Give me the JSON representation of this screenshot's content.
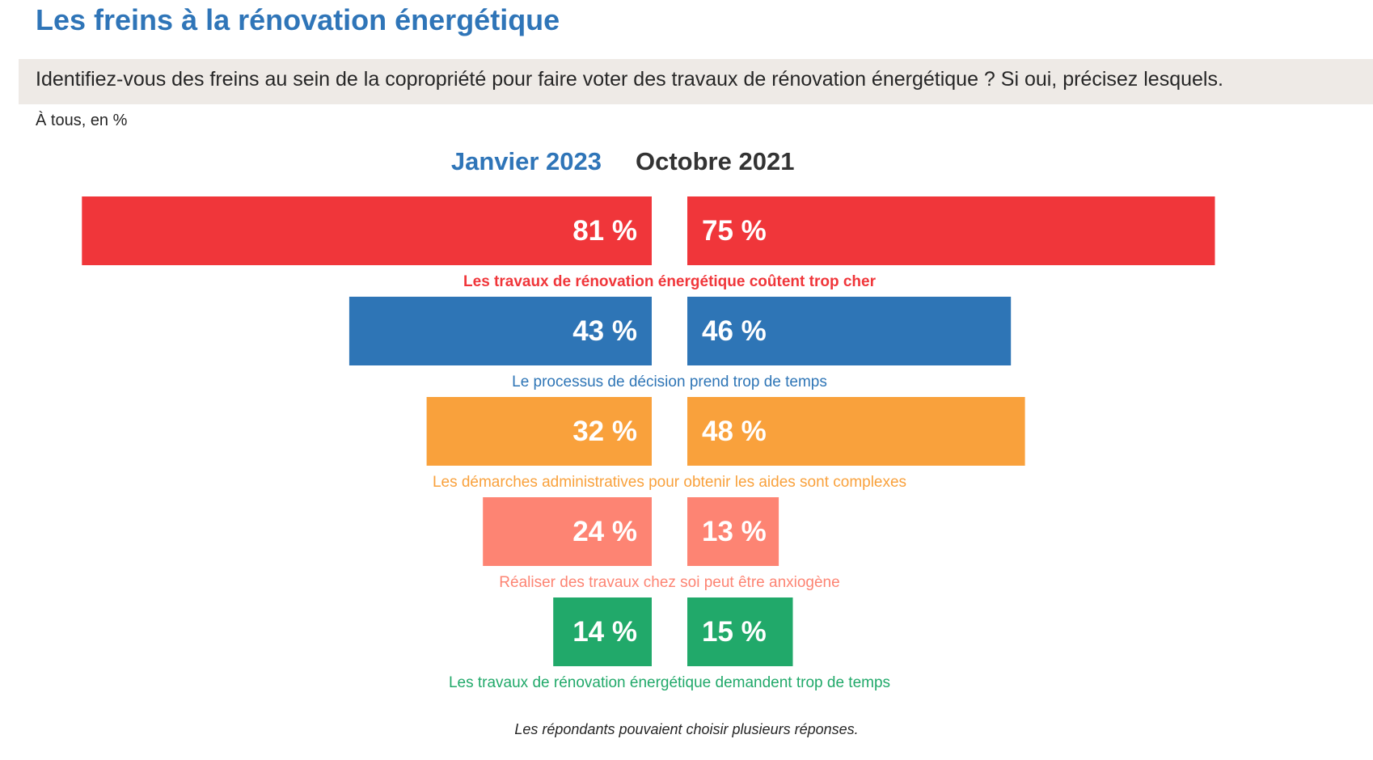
{
  "title": "Les freins à la rénovation énergétique",
  "question": "Identifiez-vous des freins au sein de la copropriété pour faire voter des travaux de rénovation énergétique ? Si oui, précisez lesquels.",
  "base": "À tous, en %",
  "footnote": "Les répondants pouvaient choisir plusieurs réponses.",
  "colors": {
    "title": "#2f75b8",
    "banner": "#eeeae6",
    "column_left": "#2f75b8",
    "column_right": "#333333"
  },
  "chart_data": {
    "type": "bar",
    "orientation": "horizontal-butterfly",
    "categories": [
      "Les travaux de rénovation énergétique coûtent trop cher",
      "Le processus de décision prend trop de temps",
      "Les démarches administratives pour obtenir les aides sont complexes",
      "Réaliser des travaux chez soi peut être anxiogène",
      "Les travaux de rénovation énergétique demandent trop de temps"
    ],
    "category_colors": [
      "#f0363a",
      "#2e75b6",
      "#f9a13c",
      "#fd8473",
      "#21a96a"
    ],
    "series": [
      {
        "name": "Janvier 2023",
        "values": [
          81,
          43,
          32,
          24,
          14
        ],
        "labels": [
          "81 %",
          "43 %",
          "32 %",
          "24 %",
          "14 %"
        ]
      },
      {
        "name": "Octobre 2021",
        "values": [
          75,
          46,
          48,
          13,
          15
        ],
        "labels": [
          "75 %",
          "46 %",
          "48 %",
          "13 %",
          "15 %"
        ]
      }
    ],
    "unit": "%",
    "xlim": [
      0,
      100
    ],
    "grid": false,
    "legend": "column headers above bars"
  }
}
